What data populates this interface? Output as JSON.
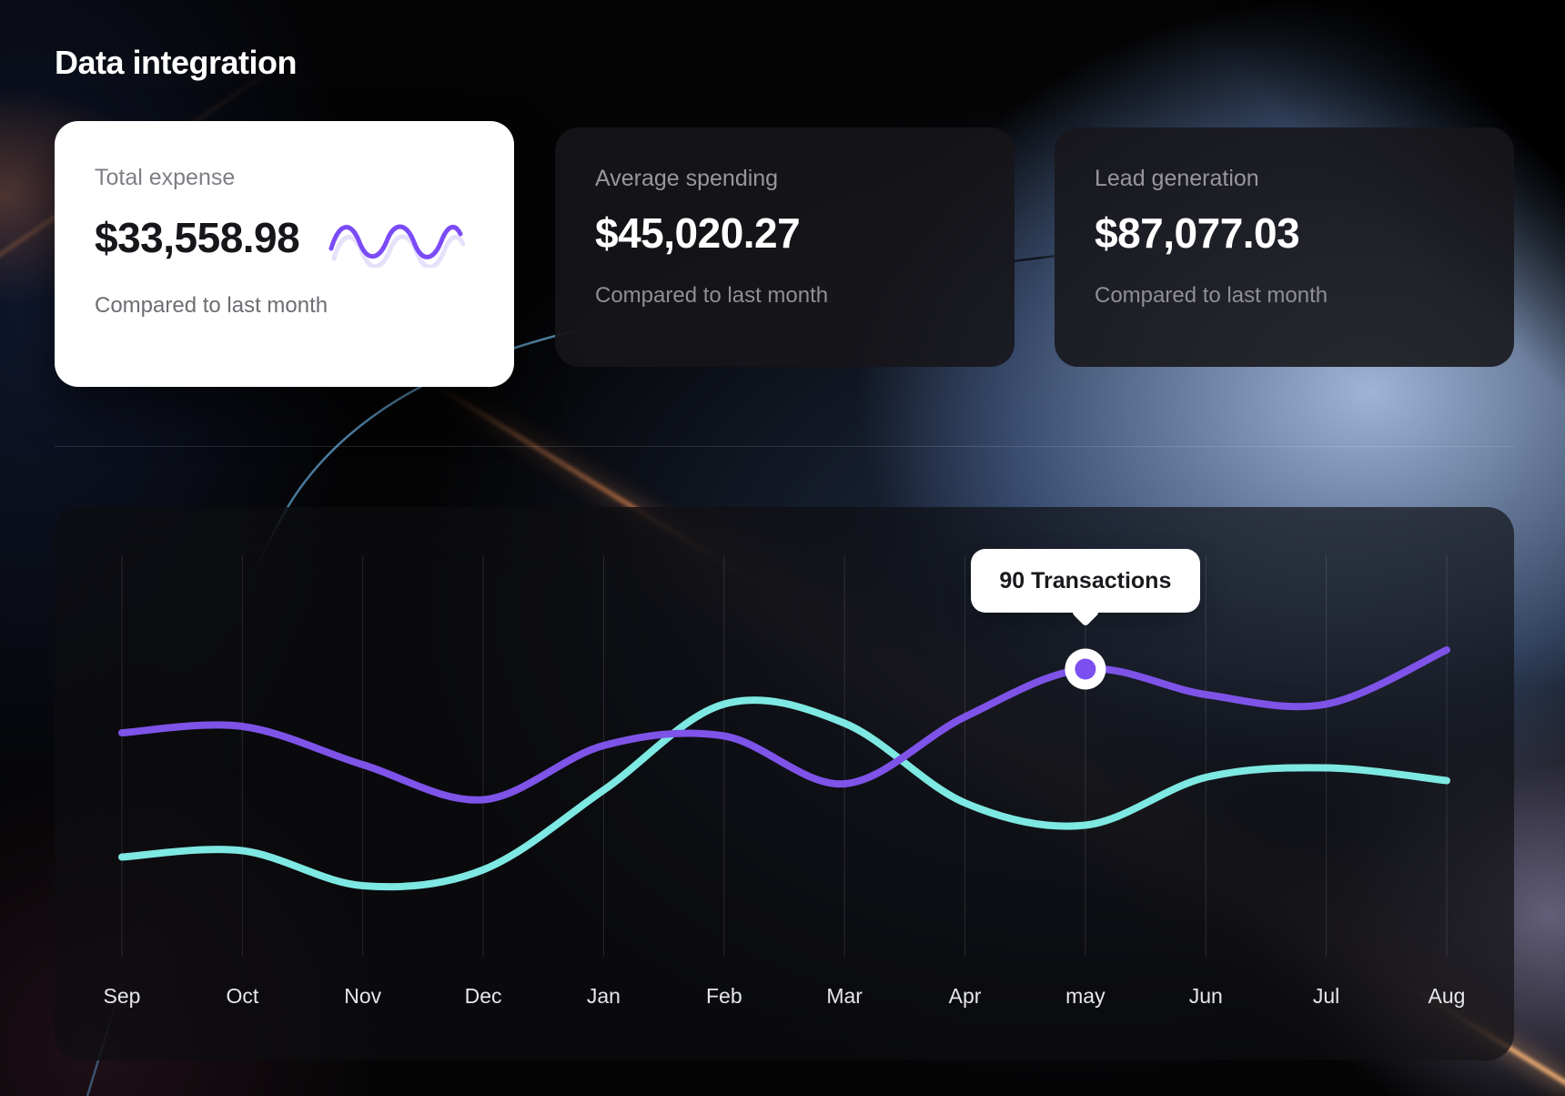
{
  "page": {
    "title": "Data integration"
  },
  "cards": [
    {
      "label": "Total expense",
      "value": "$33,558.98",
      "caption": "Compared to last month",
      "accent": "#7B4BF7"
    },
    {
      "label": "Average spending",
      "value": "$45,020.27",
      "caption": "Compared to last month"
    },
    {
      "label": "Lead generation",
      "value": "$87,077.03",
      "caption": "Compared to last month"
    }
  ],
  "chart_data": {
    "type": "line",
    "title": "",
    "xlabel": "",
    "ylabel": "",
    "categories": [
      "Sep",
      "Oct",
      "Nov",
      "Dec",
      "Jan",
      "Feb",
      "Mar",
      "Apr",
      "may",
      "Jun",
      "Jul",
      "Aug"
    ],
    "series": [
      {
        "name": "transactions-primary",
        "color": "#7E53E8",
        "values": [
          70,
          72,
          60,
          49,
          66,
          69,
          54,
          75,
          90,
          82,
          79,
          96
        ]
      },
      {
        "name": "transactions-secondary",
        "color": "#7EE8E2",
        "values": [
          31,
          33,
          22,
          27,
          52,
          79,
          73,
          48,
          41,
          56,
          59,
          55
        ]
      }
    ],
    "annotation": {
      "label": "90 Transactions",
      "series": "transactions-primary",
      "category": "may",
      "value": 90
    },
    "ylim": [
      0,
      130
    ],
    "grid": "vertical-only",
    "legend": "none"
  }
}
